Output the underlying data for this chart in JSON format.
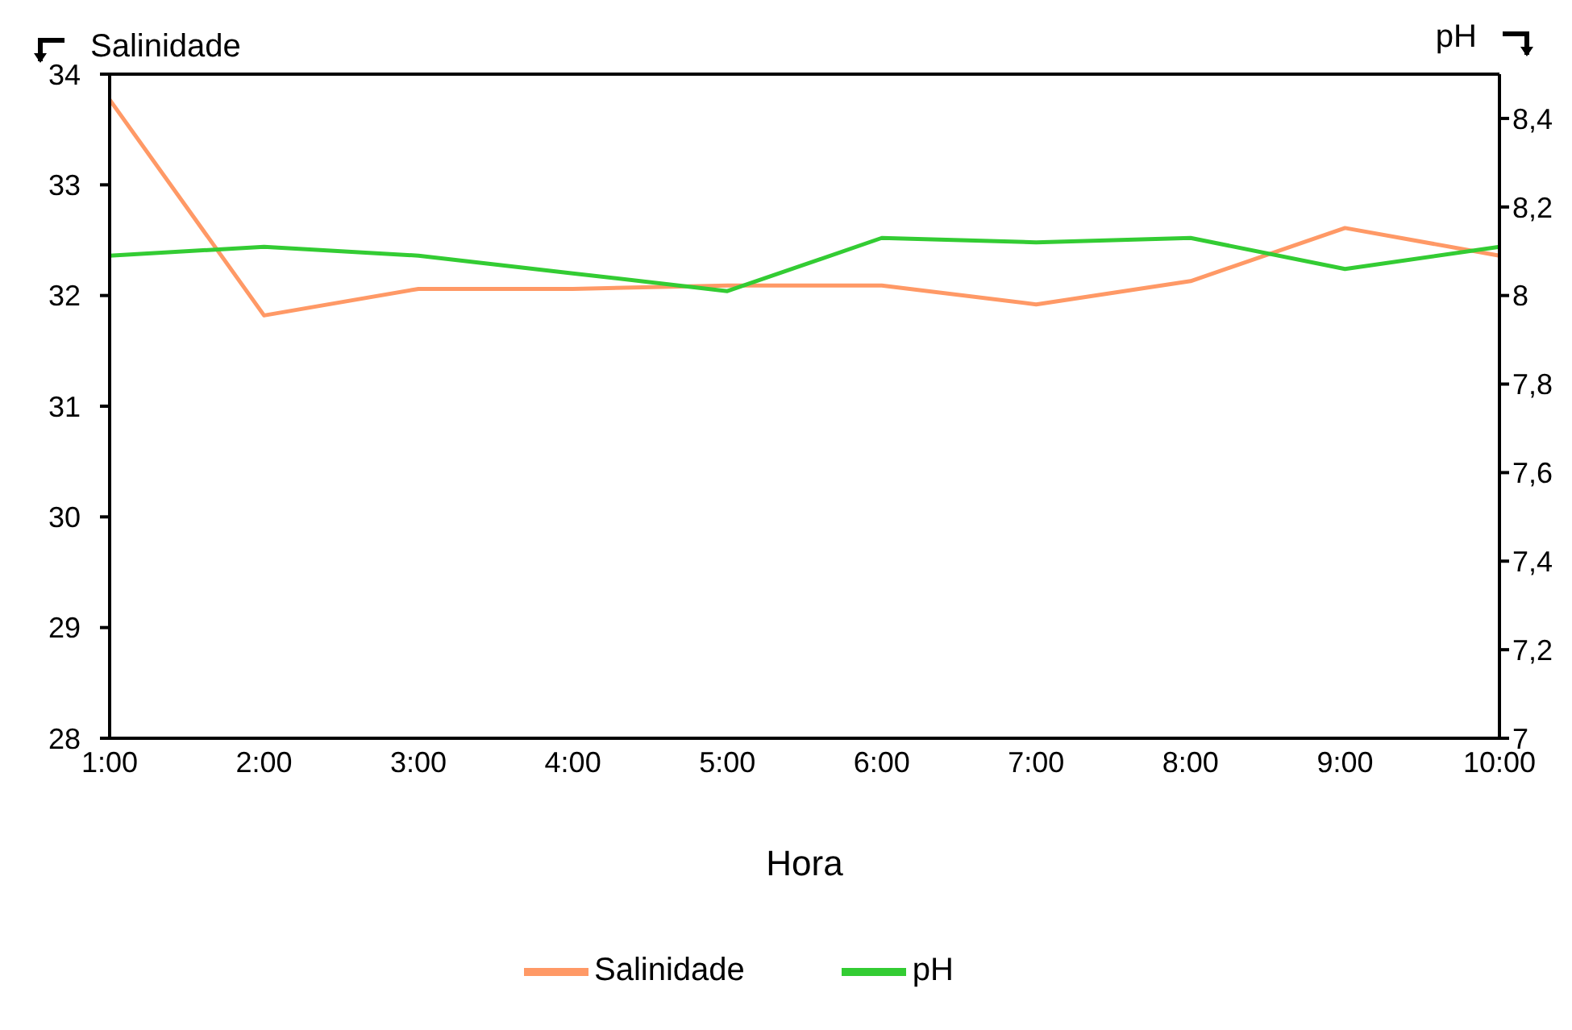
{
  "chart_data": {
    "type": "line",
    "xlabel": "Hora",
    "ylabel": "Salinidade",
    "y2label": "pH",
    "categories": [
      "1:00",
      "2:00",
      "3:00",
      "4:00",
      "5:00",
      "6:00",
      "7:00",
      "8:00",
      "9:00",
      "10:00"
    ],
    "series": [
      {
        "name": "Salinidade",
        "color": "#ff9966",
        "values": [
          33.77,
          31.82,
          32.06,
          32.06,
          32.09,
          32.09,
          31.92,
          32.13,
          32.61,
          32.36
        ]
      },
      {
        "name": "pH",
        "color": "#33cc33",
        "axis": "y2",
        "values": [
          8.09,
          8.11,
          8.09,
          8.05,
          8.01,
          8.13,
          8.12,
          8.13,
          8.06,
          8.11
        ]
      }
    ],
    "ylim": [
      28,
      34
    ],
    "yticks": [
      28,
      29,
      30,
      31,
      32,
      33,
      34
    ],
    "y2lim": [
      7,
      8.5
    ],
    "y2ticks": [
      7,
      {
        "value": 7.2,
        "label": "7,2"
      },
      {
        "value": 7.4,
        "label": "7,4"
      },
      {
        "value": 7.6,
        "label": "7,6"
      },
      {
        "value": 7.8,
        "label": "7,8"
      },
      8,
      {
        "value": 8.2,
        "label": "8,2"
      },
      {
        "value": 8.4,
        "label": "8,4"
      }
    ],
    "grid": false,
    "legend": "bottom",
    "marker": "none",
    "line_style": "solid"
  }
}
